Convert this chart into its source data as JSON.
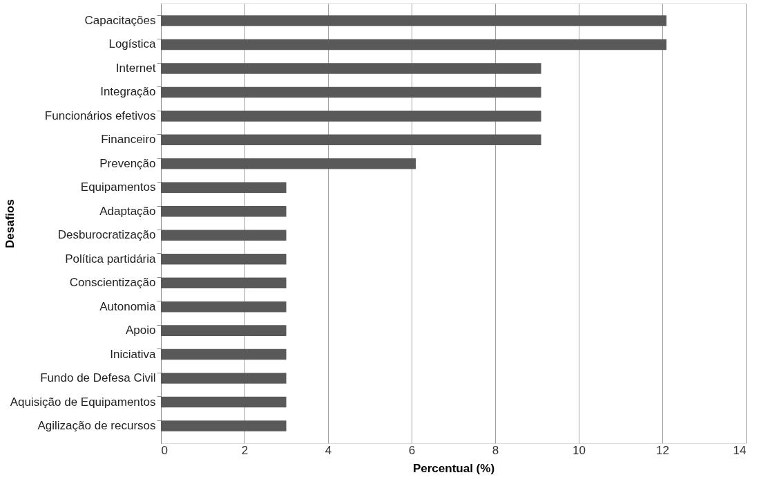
{
  "chart_data": {
    "type": "bar",
    "orientation": "horizontal",
    "xlabel": "Percentual (%)",
    "ylabel": "Desafios",
    "categories": [
      "Capacitações",
      "Logística",
      "Internet",
      "Integração",
      "Funcionários efetivos",
      "Financeiro",
      "Prevenção",
      "Equipamentos",
      "Adaptação",
      "Desburocratização",
      "Política partidária",
      "Conscientização",
      "Autonomia",
      "Apoio",
      "Iniciativa",
      "Fundo de Defesa Civil",
      "Aquisição de Equipamentos",
      "Agilização de recursos"
    ],
    "values": [
      12.1,
      12.1,
      9.1,
      9.1,
      9.1,
      9.1,
      6.1,
      3.0,
      3.0,
      3.0,
      3.0,
      3.0,
      3.0,
      3.0,
      3.0,
      3.0,
      3.0,
      3.0
    ],
    "color": "#595959",
    "xlim": [
      0,
      14
    ],
    "xticks": [
      0,
      2,
      4,
      6,
      8,
      10,
      12,
      14
    ],
    "grid": "x"
  }
}
